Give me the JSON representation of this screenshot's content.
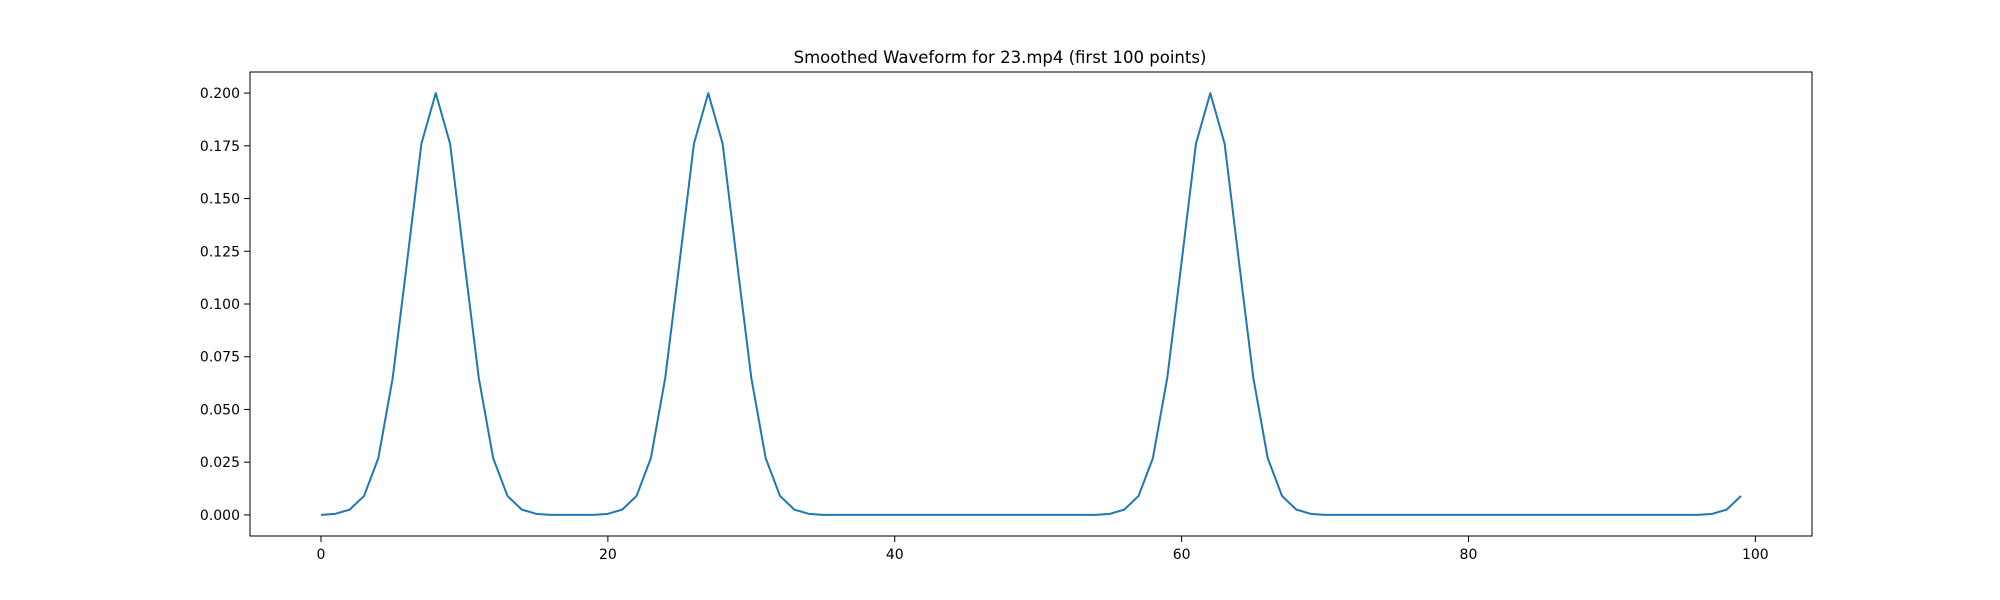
{
  "chart_data": {
    "type": "line",
    "title": "Smoothed Waveform for 23.mp4 (first 100 points)",
    "xlabel": "",
    "ylabel": "",
    "xlim": [
      -4.95,
      103.95
    ],
    "ylim": [
      -0.01,
      0.21
    ],
    "xticks": [
      0,
      20,
      40,
      60,
      80,
      100
    ],
    "xtick_labels": [
      "0",
      "20",
      "40",
      "60",
      "80",
      "100"
    ],
    "yticks": [
      0.0,
      0.025,
      0.05,
      0.075,
      0.1,
      0.125,
      0.15,
      0.175,
      0.2
    ],
    "ytick_labels": [
      "0.000",
      "0.025",
      "0.050",
      "0.075",
      "0.100",
      "0.125",
      "0.150",
      "0.175",
      "0.200"
    ],
    "grid": false,
    "line_color": "#1f77b4",
    "series": [
      {
        "x": [
          0,
          1,
          2,
          3,
          4,
          5,
          6,
          7,
          8,
          9,
          10,
          11,
          12,
          13,
          14,
          15,
          16,
          17,
          18,
          19,
          20,
          21,
          22,
          23,
          24,
          25,
          26,
          27,
          28,
          29,
          30,
          31,
          32,
          33,
          34,
          35,
          36,
          37,
          38,
          39,
          40,
          41,
          42,
          43,
          44,
          45,
          46,
          47,
          48,
          49,
          50,
          51,
          52,
          53,
          54,
          55,
          56,
          57,
          58,
          59,
          60,
          61,
          62,
          63,
          64,
          65,
          66,
          67,
          68,
          69,
          70,
          71,
          72,
          73,
          74,
          75,
          76,
          77,
          78,
          79,
          80,
          81,
          82,
          83,
          84,
          85,
          86,
          87,
          88,
          89,
          90,
          91,
          92,
          93,
          94,
          95,
          96,
          97,
          98,
          99
        ],
        "values": [
          0.0,
          0.0005,
          0.0025,
          0.009,
          0.027,
          0.065,
          0.12,
          0.176,
          0.2,
          0.176,
          0.12,
          0.065,
          0.027,
          0.009,
          0.0025,
          0.0005,
          0.0,
          0.0,
          0.0,
          0.0,
          0.0005,
          0.0025,
          0.009,
          0.027,
          0.065,
          0.12,
          0.176,
          0.2,
          0.176,
          0.12,
          0.065,
          0.027,
          0.009,
          0.0025,
          0.0005,
          0.0,
          0.0,
          0.0,
          0.0,
          0.0,
          0.0,
          0.0,
          0.0,
          0.0,
          0.0,
          0.0,
          0.0,
          0.0,
          0.0,
          0.0,
          0.0,
          0.0,
          0.0,
          0.0,
          0.0,
          0.0005,
          0.0025,
          0.009,
          0.027,
          0.065,
          0.12,
          0.176,
          0.2,
          0.176,
          0.12,
          0.065,
          0.027,
          0.009,
          0.0025,
          0.0005,
          0.0,
          0.0,
          0.0,
          0.0,
          0.0,
          0.0,
          0.0,
          0.0,
          0.0,
          0.0,
          0.0,
          0.0,
          0.0,
          0.0,
          0.0,
          0.0,
          0.0,
          0.0,
          0.0,
          0.0,
          0.0,
          0.0,
          0.0,
          0.0,
          0.0,
          0.0,
          0.0,
          0.0005,
          0.0025,
          0.009
        ]
      }
    ]
  }
}
